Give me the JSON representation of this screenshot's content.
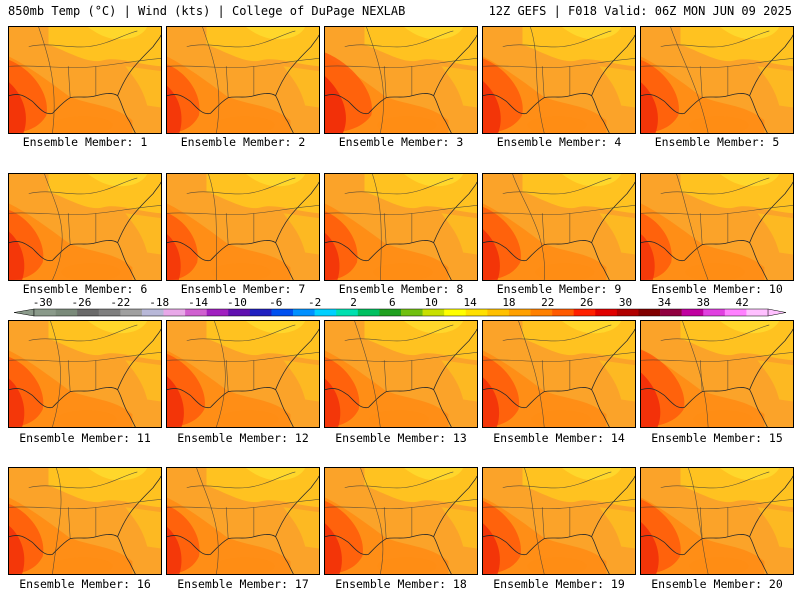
{
  "header": {
    "left": "850mb Temp (°C) | Wind (kts) | College of DuPage NEXLAB",
    "right": "12Z GEFS | F018 Valid: 06Z MON JUN 09 2025"
  },
  "panels": [
    {
      "label": "Ensemble Member: 1",
      "hot": 0.55
    },
    {
      "label": "Ensemble Member: 2",
      "hot": 0.4
    },
    {
      "label": "Ensemble Member: 3",
      "hot": 0.8
    },
    {
      "label": "Ensemble Member: 4",
      "hot": 0.6
    },
    {
      "label": "Ensemble Member: 5",
      "hot": 0.55
    },
    {
      "label": "Ensemble Member: 6",
      "hot": 0.45
    },
    {
      "label": "Ensemble Member: 7",
      "hot": 0.35
    },
    {
      "label": "Ensemble Member: 8",
      "hot": 0.4
    },
    {
      "label": "Ensemble Member: 9",
      "hot": 0.55
    },
    {
      "label": "Ensemble Member: 10",
      "hot": 0.35
    },
    {
      "label": "Ensemble Member: 11",
      "hot": 0.45
    },
    {
      "label": "Ensemble Member: 12",
      "hot": 0.55
    },
    {
      "label": "Ensemble Member: 13",
      "hot": 0.45
    },
    {
      "label": "Ensemble Member: 14",
      "hot": 0.5
    },
    {
      "label": "Ensemble Member: 15",
      "hot": 0.7
    },
    {
      "label": "Ensemble Member: 16",
      "hot": 0.45
    },
    {
      "label": "Ensemble Member: 17",
      "hot": 0.4
    },
    {
      "label": "Ensemble Member: 18",
      "hot": 0.55
    },
    {
      "label": "Ensemble Member: 19",
      "hot": 0.55
    },
    {
      "label": "Ensemble Member: 20",
      "hot": 0.6
    }
  ],
  "colorbar": {
    "ticks": [
      "-30",
      "-26",
      "-22",
      "-18",
      "-14",
      "-10",
      "-6",
      "-2",
      "2",
      "6",
      "10",
      "14",
      "18",
      "22",
      "26",
      "30",
      "34",
      "38",
      "42"
    ],
    "colors": [
      "#8a9a8a",
      "#7a8a7a",
      "#6a6a6a",
      "#7f7f7f",
      "#a0a0a0",
      "#b8b8d8",
      "#e8a8e8",
      "#d060d0",
      "#a020c0",
      "#6010b0",
      "#2020c0",
      "#0050f0",
      "#0090ff",
      "#00d0ff",
      "#00e0b0",
      "#00c060",
      "#20a020",
      "#70c010",
      "#c8e000",
      "#ffff00",
      "#ffe000",
      "#ffc000",
      "#ffa000",
      "#ff8000",
      "#ff5a00",
      "#ff2000",
      "#e00000",
      "#b00000",
      "#800000",
      "#900040",
      "#c000a0",
      "#e040e0",
      "#ff80ff",
      "#ffc0ff"
    ]
  },
  "palette": {
    "base": "#fba329",
    "warm": "#ff8c14",
    "hot": "#ff5a0a",
    "hottest": "#f02808",
    "cool": "#ffc81e",
    "coolest": "#ffe030"
  }
}
